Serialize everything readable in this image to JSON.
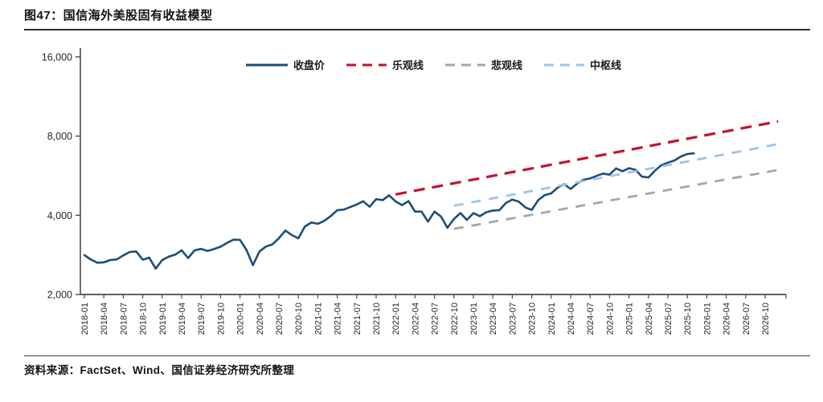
{
  "header": {
    "title": "图47：国信海外美股固有收益模型"
  },
  "footer": {
    "source": "资料来源：FactSet、Wind、国信证券经济研究所整理"
  },
  "chart_data": {
    "type": "line",
    "title": "国信海外美股固有收益模型",
    "y_scale": "log2",
    "ylim": [
      2000,
      16000
    ],
    "grid": "off",
    "legend_position": "top-center",
    "y_ticks": [
      {
        "value": 2000,
        "label": "2,000"
      },
      {
        "value": 4000,
        "label": "4,000"
      },
      {
        "value": 8000,
        "label": "8,000"
      },
      {
        "value": 16000,
        "label": "16,000"
      }
    ],
    "x_range": [
      "2018-01",
      "2026-12"
    ],
    "x_ticks": [
      "2018-01",
      "2018-04",
      "2018-07",
      "2018-10",
      "2019-01",
      "2019-04",
      "2019-07",
      "2019-10",
      "2020-01",
      "2020-04",
      "2020-07",
      "2020-10",
      "2021-01",
      "2021-04",
      "2021-07",
      "2021-10",
      "2022-01",
      "2022-04",
      "2022-07",
      "2022-10",
      "2023-01",
      "2023-04",
      "2023-07",
      "2023-10",
      "2024-01",
      "2024-04",
      "2024-07",
      "2024-10",
      "2025-01",
      "2025-04",
      "2025-07",
      "2025-10",
      "2026-01",
      "2026-04",
      "2026-07",
      "2026-10"
    ],
    "series": [
      {
        "key": "close",
        "name": "收盘价",
        "color": "#1B4E79",
        "style": "solid",
        "interval": "monthly",
        "start": "2018-01",
        "values": [
          2824,
          2714,
          2641,
          2648,
          2705,
          2718,
          2816,
          2902,
          2914,
          2712,
          2760,
          2507,
          2704,
          2784,
          2834,
          2946,
          2752,
          2942,
          2980,
          2926,
          2977,
          3038,
          3141,
          3231,
          3226,
          2954,
          2585,
          2912,
          3044,
          3100,
          3271,
          3500,
          3363,
          3270,
          3622,
          3756,
          3714,
          3811,
          3973,
          4181,
          4204,
          4298,
          4395,
          4523,
          4308,
          4605,
          4567,
          4766,
          4516,
          4374,
          4530,
          4132,
          4132,
          3785,
          4130,
          3955,
          3586,
          3872,
          4080,
          3840,
          4077,
          3970,
          4109,
          4169,
          4180,
          4450,
          4589,
          4508,
          4288,
          4194,
          4568,
          4770,
          4846,
          5096,
          5254,
          5036,
          5278,
          5460,
          5522,
          5648,
          5762,
          5705,
          6032,
          5882,
          6041,
          5955,
          5612,
          5569,
          5912,
          6205,
          6339,
          6460,
          6688,
          6840,
          6880
        ]
      },
      {
        "key": "optimistic",
        "name": "乐观线",
        "color": "#C8102E",
        "style": "dashed",
        "points": [
          {
            "x": "2022-01",
            "y": 4800
          },
          {
            "x": "2026-12",
            "y": 9100
          }
        ]
      },
      {
        "key": "pessimistic",
        "name": "悲观线",
        "color": "#A6A6A6",
        "style": "dashed",
        "points": [
          {
            "x": "2022-10",
            "y": 3550
          },
          {
            "x": "2026-12",
            "y": 5950
          }
        ]
      },
      {
        "key": "central",
        "name": "中枢线",
        "color": "#9DC3E6",
        "style": "dashed",
        "points": [
          {
            "x": "2022-10",
            "y": 4350
          },
          {
            "x": "2026-12",
            "y": 7450
          }
        ]
      }
    ]
  }
}
